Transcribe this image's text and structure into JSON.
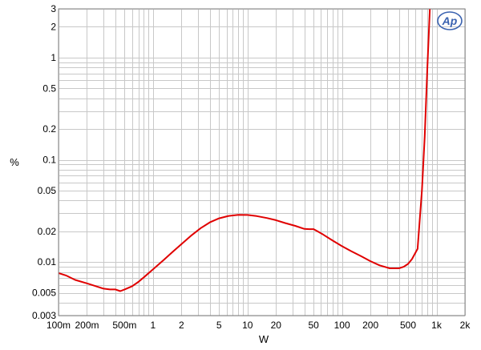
{
  "chart_data": {
    "type": "line",
    "xlabel": "W",
    "ylabel": "%",
    "x_scale": "log",
    "y_scale": "log",
    "xlim": [
      0.1,
      2000
    ],
    "ylim": [
      0.003,
      3
    ],
    "grid": true,
    "x_ticks": [
      {
        "value": 0.1,
        "label": "100m"
      },
      {
        "value": 0.2,
        "label": "200m"
      },
      {
        "value": 0.5,
        "label": "500m"
      },
      {
        "value": 1,
        "label": "1"
      },
      {
        "value": 2,
        "label": "2"
      },
      {
        "value": 5,
        "label": "5"
      },
      {
        "value": 10,
        "label": "10"
      },
      {
        "value": 20,
        "label": "20"
      },
      {
        "value": 50,
        "label": "50"
      },
      {
        "value": 100,
        "label": "100"
      },
      {
        "value": 200,
        "label": "200"
      },
      {
        "value": 500,
        "label": "500"
      },
      {
        "value": 1000,
        "label": "1k"
      },
      {
        "value": 2000,
        "label": "2k"
      }
    ],
    "y_ticks": [
      {
        "value": 0.003,
        "label": "0.003"
      },
      {
        "value": 0.005,
        "label": "0.005"
      },
      {
        "value": 0.01,
        "label": "0.01"
      },
      {
        "value": 0.02,
        "label": "0.02"
      },
      {
        "value": 0.05,
        "label": "0.05"
      },
      {
        "value": 0.1,
        "label": "0.1"
      },
      {
        "value": 0.2,
        "label": "0.2"
      },
      {
        "value": 0.5,
        "label": "0.5"
      },
      {
        "value": 1,
        "label": "1"
      },
      {
        "value": 2,
        "label": "2"
      },
      {
        "value": 3,
        "label": "3"
      }
    ],
    "series": [
      {
        "color": "#e00000",
        "x": [
          0.1,
          0.12,
          0.15,
          0.2,
          0.25,
          0.3,
          0.35,
          0.4,
          0.45,
          0.5,
          0.6,
          0.7,
          0.8,
          1.0,
          1.3,
          1.6,
          2.0,
          2.5,
          3.2,
          4.0,
          5.0,
          6.3,
          8.0,
          10,
          12.5,
          16,
          20,
          25,
          32,
          40,
          45,
          50,
          55,
          63,
          80,
          100,
          125,
          160,
          200,
          250,
          320,
          400,
          450,
          500,
          550,
          630,
          700,
          750,
          800,
          850
        ],
        "y": [
          0.0078,
          0.0074,
          0.0067,
          0.0062,
          0.0058,
          0.0055,
          0.0054,
          0.0054,
          0.0052,
          0.0054,
          0.0058,
          0.0064,
          0.0071,
          0.0085,
          0.0105,
          0.0125,
          0.015,
          0.018,
          0.0215,
          0.0245,
          0.0268,
          0.0283,
          0.029,
          0.0289,
          0.0282,
          0.027,
          0.0257,
          0.0241,
          0.0226,
          0.0211,
          0.021,
          0.021,
          0.02,
          0.0186,
          0.0162,
          0.0143,
          0.0128,
          0.0114,
          0.0102,
          0.0093,
          0.0087,
          0.0087,
          0.009,
          0.0096,
          0.0107,
          0.0135,
          0.05,
          0.17,
          0.8,
          3.0
        ]
      }
    ]
  },
  "logo": {
    "text": "Ap",
    "color": "#3a62b0"
  }
}
